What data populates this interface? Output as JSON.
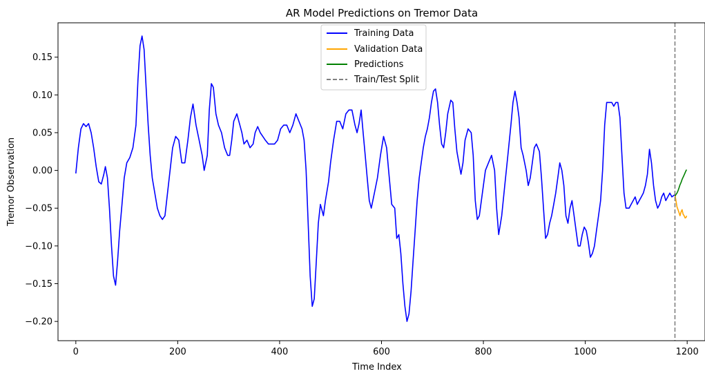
{
  "chart_data": {
    "type": "line",
    "title": "AR Model Predictions on Tremor Data",
    "xlabel": "Time Index",
    "ylabel": "Tremor Observation",
    "xlim": [
      -35,
      1235
    ],
    "ylim": [
      -0.2255,
      0.1955
    ],
    "xticks": [
      0,
      200,
      400,
      600,
      800,
      1000,
      1200
    ],
    "xtick_labels": [
      "0",
      "200",
      "400",
      "600",
      "800",
      "1000",
      "1200"
    ],
    "yticks": [
      -0.2,
      -0.15,
      -0.1,
      -0.05,
      0.0,
      0.05,
      0.1,
      0.15
    ],
    "ytick_labels": [
      "−0.20",
      "−0.15",
      "−0.10",
      "−0.05",
      "0.00",
      "0.05",
      "0.10",
      "0.15"
    ],
    "grid": false,
    "legend_position": "top-center",
    "split": {
      "name": "Train/Test Split",
      "x": 1176,
      "color": "#808080",
      "dash": true
    },
    "series": [
      {
        "name": "Training Data",
        "color": "#0000ff",
        "points": [
          [
            0,
            -0.004
          ],
          [
            5,
            0.03
          ],
          [
            10,
            0.055
          ],
          [
            15,
            0.062
          ],
          [
            20,
            0.058
          ],
          [
            25,
            0.062
          ],
          [
            30,
            0.05
          ],
          [
            35,
            0.03
          ],
          [
            40,
            0.005
          ],
          [
            45,
            -0.015
          ],
          [
            50,
            -0.018
          ],
          [
            55,
            -0.005
          ],
          [
            58,
            0.005
          ],
          [
            62,
            -0.01
          ],
          [
            66,
            -0.05
          ],
          [
            70,
            -0.1
          ],
          [
            74,
            -0.14
          ],
          [
            78,
            -0.152
          ],
          [
            82,
            -0.12
          ],
          [
            86,
            -0.08
          ],
          [
            90,
            -0.05
          ],
          [
            95,
            -0.01
          ],
          [
            100,
            0.01
          ],
          [
            106,
            0.017
          ],
          [
            112,
            0.03
          ],
          [
            118,
            0.06
          ],
          [
            122,
            0.12
          ],
          [
            126,
            0.165
          ],
          [
            130,
            0.178
          ],
          [
            134,
            0.16
          ],
          [
            138,
            0.11
          ],
          [
            142,
            0.06
          ],
          [
            146,
            0.02
          ],
          [
            150,
            -0.01
          ],
          [
            155,
            -0.03
          ],
          [
            160,
            -0.05
          ],
          [
            165,
            -0.06
          ],
          [
            170,
            -0.065
          ],
          [
            175,
            -0.06
          ],
          [
            180,
            -0.03
          ],
          [
            185,
            0.0
          ],
          [
            190,
            0.03
          ],
          [
            196,
            0.045
          ],
          [
            202,
            0.04
          ],
          [
            208,
            0.01
          ],
          [
            214,
            0.01
          ],
          [
            220,
            0.04
          ],
          [
            225,
            0.07
          ],
          [
            230,
            0.088
          ],
          [
            236,
            0.06
          ],
          [
            242,
            0.04
          ],
          [
            248,
            0.02
          ],
          [
            252,
            0.0
          ],
          [
            258,
            0.02
          ],
          [
            262,
            0.08
          ],
          [
            266,
            0.115
          ],
          [
            270,
            0.11
          ],
          [
            275,
            0.075
          ],
          [
            280,
            0.06
          ],
          [
            286,
            0.05
          ],
          [
            292,
            0.03
          ],
          [
            298,
            0.02
          ],
          [
            302,
            0.02
          ],
          [
            306,
            0.04
          ],
          [
            310,
            0.065
          ],
          [
            316,
            0.075
          ],
          [
            322,
            0.06
          ],
          [
            326,
            0.05
          ],
          [
            330,
            0.035
          ],
          [
            336,
            0.04
          ],
          [
            342,
            0.03
          ],
          [
            348,
            0.035
          ],
          [
            352,
            0.05
          ],
          [
            357,
            0.058
          ],
          [
            362,
            0.05
          ],
          [
            367,
            0.045
          ],
          [
            372,
            0.04
          ],
          [
            378,
            0.035
          ],
          [
            384,
            0.035
          ],
          [
            390,
            0.035
          ],
          [
            396,
            0.04
          ],
          [
            402,
            0.055
          ],
          [
            408,
            0.06
          ],
          [
            414,
            0.06
          ],
          [
            420,
            0.05
          ],
          [
            426,
            0.06
          ],
          [
            432,
            0.075
          ],
          [
            438,
            0.065
          ],
          [
            444,
            0.055
          ],
          [
            448,
            0.04
          ],
          [
            452,
            0.0
          ],
          [
            456,
            -0.07
          ],
          [
            460,
            -0.14
          ],
          [
            464,
            -0.18
          ],
          [
            468,
            -0.17
          ],
          [
            472,
            -0.12
          ],
          [
            476,
            -0.07
          ],
          [
            480,
            -0.045
          ],
          [
            486,
            -0.06
          ],
          [
            490,
            -0.04
          ],
          [
            496,
            -0.015
          ],
          [
            500,
            0.01
          ],
          [
            506,
            0.04
          ],
          [
            512,
            0.065
          ],
          [
            518,
            0.065
          ],
          [
            524,
            0.055
          ],
          [
            530,
            0.075
          ],
          [
            536,
            0.08
          ],
          [
            542,
            0.08
          ],
          [
            548,
            0.06
          ],
          [
            552,
            0.05
          ],
          [
            556,
            0.062
          ],
          [
            560,
            0.08
          ],
          [
            564,
            0.05
          ],
          [
            568,
            0.02
          ],
          [
            572,
            -0.01
          ],
          [
            576,
            -0.04
          ],
          [
            580,
            -0.05
          ],
          [
            586,
            -0.03
          ],
          [
            592,
            -0.01
          ],
          [
            598,
            0.02
          ],
          [
            604,
            0.045
          ],
          [
            610,
            0.03
          ],
          [
            614,
            0.0
          ],
          [
            620,
            -0.045
          ],
          [
            626,
            -0.05
          ],
          [
            630,
            -0.09
          ],
          [
            634,
            -0.085
          ],
          [
            638,
            -0.11
          ],
          [
            642,
            -0.15
          ],
          [
            646,
            -0.18
          ],
          [
            650,
            -0.2
          ],
          [
            654,
            -0.19
          ],
          [
            658,
            -0.16
          ],
          [
            662,
            -0.12
          ],
          [
            666,
            -0.08
          ],
          [
            670,
            -0.04
          ],
          [
            674,
            -0.01
          ],
          [
            678,
            0.01
          ],
          [
            682,
            0.03
          ],
          [
            686,
            0.045
          ],
          [
            690,
            0.055
          ],
          [
            694,
            0.07
          ],
          [
            698,
            0.09
          ],
          [
            702,
            0.105
          ],
          [
            706,
            0.108
          ],
          [
            710,
            0.09
          ],
          [
            714,
            0.06
          ],
          [
            718,
            0.035
          ],
          [
            722,
            0.03
          ],
          [
            726,
            0.05
          ],
          [
            730,
            0.075
          ],
          [
            736,
            0.093
          ],
          [
            740,
            0.09
          ],
          [
            744,
            0.055
          ],
          [
            748,
            0.025
          ],
          [
            752,
            0.01
          ],
          [
            756,
            -0.005
          ],
          [
            760,
            0.01
          ],
          [
            764,
            0.04
          ],
          [
            770,
            0.055
          ],
          [
            776,
            0.05
          ],
          [
            780,
            0.02
          ],
          [
            784,
            -0.04
          ],
          [
            788,
            -0.065
          ],
          [
            792,
            -0.06
          ],
          [
            798,
            -0.03
          ],
          [
            804,
            0.0
          ],
          [
            810,
            0.01
          ],
          [
            816,
            0.02
          ],
          [
            822,
            0.0
          ],
          [
            826,
            -0.05
          ],
          [
            830,
            -0.085
          ],
          [
            836,
            -0.06
          ],
          [
            842,
            -0.02
          ],
          [
            848,
            0.02
          ],
          [
            854,
            0.06
          ],
          [
            858,
            0.09
          ],
          [
            862,
            0.105
          ],
          [
            866,
            0.09
          ],
          [
            870,
            0.07
          ],
          [
            874,
            0.03
          ],
          [
            878,
            0.02
          ],
          [
            884,
            0.0
          ],
          [
            888,
            -0.02
          ],
          [
            892,
            -0.01
          ],
          [
            896,
            0.01
          ],
          [
            900,
            0.03
          ],
          [
            904,
            0.035
          ],
          [
            910,
            0.025
          ],
          [
            914,
            -0.01
          ],
          [
            918,
            -0.05
          ],
          [
            922,
            -0.09
          ],
          [
            926,
            -0.085
          ],
          [
            930,
            -0.07
          ],
          [
            934,
            -0.06
          ],
          [
            938,
            -0.045
          ],
          [
            942,
            -0.03
          ],
          [
            946,
            -0.01
          ],
          [
            950,
            0.01
          ],
          [
            954,
            0.0
          ],
          [
            958,
            -0.02
          ],
          [
            962,
            -0.06
          ],
          [
            966,
            -0.07
          ],
          [
            970,
            -0.05
          ],
          [
            974,
            -0.04
          ],
          [
            978,
            -0.06
          ],
          [
            982,
            -0.08
          ],
          [
            986,
            -0.1
          ],
          [
            990,
            -0.1
          ],
          [
            994,
            -0.085
          ],
          [
            998,
            -0.075
          ],
          [
            1002,
            -0.08
          ],
          [
            1006,
            -0.095
          ],
          [
            1010,
            -0.115
          ],
          [
            1014,
            -0.11
          ],
          [
            1018,
            -0.1
          ],
          [
            1022,
            -0.08
          ],
          [
            1026,
            -0.06
          ],
          [
            1030,
            -0.04
          ],
          [
            1034,
            0.0
          ],
          [
            1038,
            0.06
          ],
          [
            1042,
            0.09
          ],
          [
            1048,
            0.09
          ],
          [
            1052,
            0.09
          ],
          [
            1056,
            0.085
          ],
          [
            1060,
            0.09
          ],
          [
            1064,
            0.09
          ],
          [
            1068,
            0.07
          ],
          [
            1072,
            0.02
          ],
          [
            1076,
            -0.03
          ],
          [
            1080,
            -0.05
          ],
          [
            1086,
            -0.05
          ],
          [
            1090,
            -0.045
          ],
          [
            1094,
            -0.04
          ],
          [
            1098,
            -0.035
          ],
          [
            1102,
            -0.045
          ],
          [
            1106,
            -0.04
          ],
          [
            1110,
            -0.035
          ],
          [
            1114,
            -0.03
          ],
          [
            1118,
            -0.02
          ],
          [
            1122,
            -0.005
          ],
          [
            1126,
            0.028
          ],
          [
            1130,
            0.01
          ],
          [
            1134,
            -0.02
          ],
          [
            1138,
            -0.04
          ],
          [
            1142,
            -0.05
          ],
          [
            1146,
            -0.045
          ],
          [
            1150,
            -0.035
          ],
          [
            1154,
            -0.03
          ],
          [
            1158,
            -0.04
          ],
          [
            1162,
            -0.035
          ],
          [
            1166,
            -0.03
          ],
          [
            1170,
            -0.035
          ],
          [
            1176,
            -0.032
          ]
        ]
      },
      {
        "name": "Validation Data",
        "color": "#ffa500",
        "points": [
          [
            1176,
            -0.032
          ],
          [
            1178,
            -0.04
          ],
          [
            1180,
            -0.048
          ],
          [
            1182,
            -0.052
          ],
          [
            1184,
            -0.056
          ],
          [
            1186,
            -0.06
          ],
          [
            1188,
            -0.055
          ],
          [
            1190,
            -0.052
          ],
          [
            1192,
            -0.058
          ],
          [
            1194,
            -0.06
          ],
          [
            1196,
            -0.063
          ],
          [
            1198,
            -0.062
          ],
          [
            1199,
            -0.06
          ]
        ]
      },
      {
        "name": "Predictions",
        "color": "#008000",
        "points": [
          [
            1176,
            -0.034
          ],
          [
            1178,
            -0.032
          ],
          [
            1180,
            -0.03
          ],
          [
            1182,
            -0.027
          ],
          [
            1184,
            -0.023
          ],
          [
            1186,
            -0.019
          ],
          [
            1188,
            -0.016
          ],
          [
            1190,
            -0.012
          ],
          [
            1192,
            -0.009
          ],
          [
            1194,
            -0.006
          ],
          [
            1196,
            -0.003
          ],
          [
            1198,
            0.0
          ],
          [
            1199,
            0.001
          ]
        ]
      }
    ]
  }
}
